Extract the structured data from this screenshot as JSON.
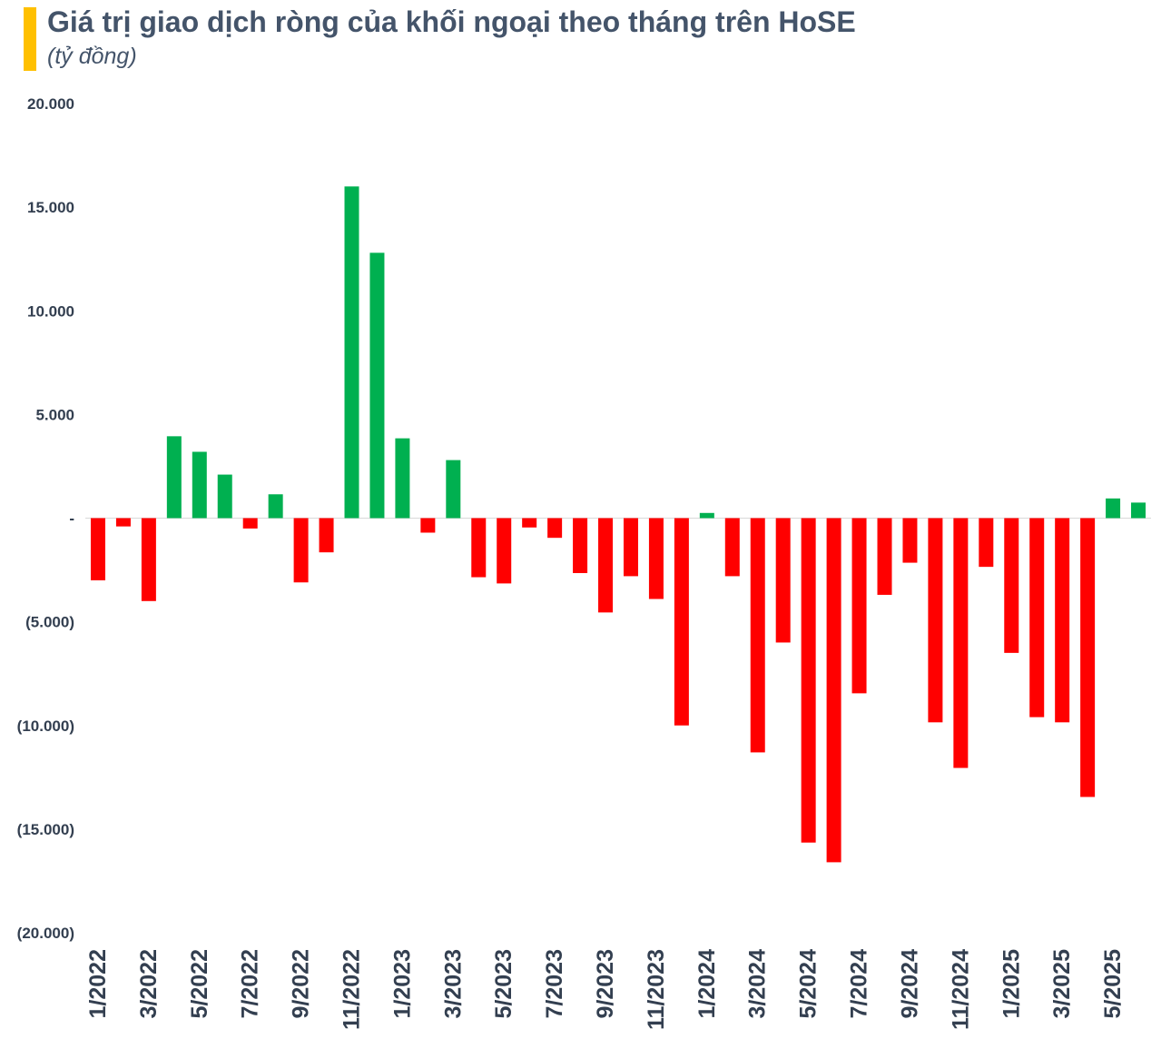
{
  "chart_data": {
    "type": "bar",
    "title": "Giá trị giao dịch ròng của khối ngoại theo tháng trên HoSE",
    "subtitle": "(tỷ đồng)",
    "xlabel": "",
    "ylabel": "",
    "ylim": [
      -20000,
      20000
    ],
    "yticks": [
      20000,
      15000,
      10000,
      5000,
      0,
      -5000,
      -10000,
      -15000,
      -20000
    ],
    "ytick_labels": [
      "20.000",
      "15.000",
      "10.000",
      "5.000",
      "-",
      "(5.000)",
      "(10.000)",
      "(15.000)",
      "(20.000)"
    ],
    "categories": [
      "1/2022",
      "2/2022",
      "3/2022",
      "4/2022",
      "5/2022",
      "6/2022",
      "7/2022",
      "8/2022",
      "9/2022",
      "10/2022",
      "11/2022",
      "12/2022",
      "1/2023",
      "2/2023",
      "3/2023",
      "4/2023",
      "5/2023",
      "6/2023",
      "7/2023",
      "8/2023",
      "9/2023",
      "10/2023",
      "11/2023",
      "12/2023",
      "1/2024",
      "2/2024",
      "3/2024",
      "4/2024",
      "5/2024",
      "6/2024",
      "7/2024",
      "8/2024",
      "9/2024",
      "10/2024",
      "11/2024",
      "12/2024",
      "1/2025",
      "2/2025",
      "3/2025",
      "4/2025",
      "5/2025",
      "6/2025"
    ],
    "x_tick_labels": [
      "1/2022",
      "3/2022",
      "5/2022",
      "7/2022",
      "9/2022",
      "11/2022",
      "1/2023",
      "3/2023",
      "5/2023",
      "7/2023",
      "9/2023",
      "11/2023",
      "1/2024",
      "3/2024",
      "5/2024",
      "7/2024",
      "9/2024",
      "11/2024",
      "1/2025",
      "3/2025",
      "5/2025"
    ],
    "values": [
      -3000,
      -400,
      -4000,
      3950,
      3200,
      2100,
      -500,
      1150,
      -3100,
      -1650,
      16000,
      12800,
      3850,
      -700,
      2800,
      -2850,
      -3150,
      -450,
      -950,
      -2650,
      -4550,
      -2800,
      -3900,
      -10000,
      250,
      -2800,
      -11300,
      -6000,
      -15650,
      -16600,
      -8450,
      -3700,
      -2150,
      -9850,
      -12050,
      -2350,
      -6500,
      -9600,
      -9850,
      -13450,
      950,
      750
    ],
    "colors": {
      "positive": "#00B050",
      "negative": "#FF0000",
      "axis_text": "#333F50",
      "zero_line": "#D9D9D9"
    },
    "grid": false,
    "legend": "none"
  }
}
